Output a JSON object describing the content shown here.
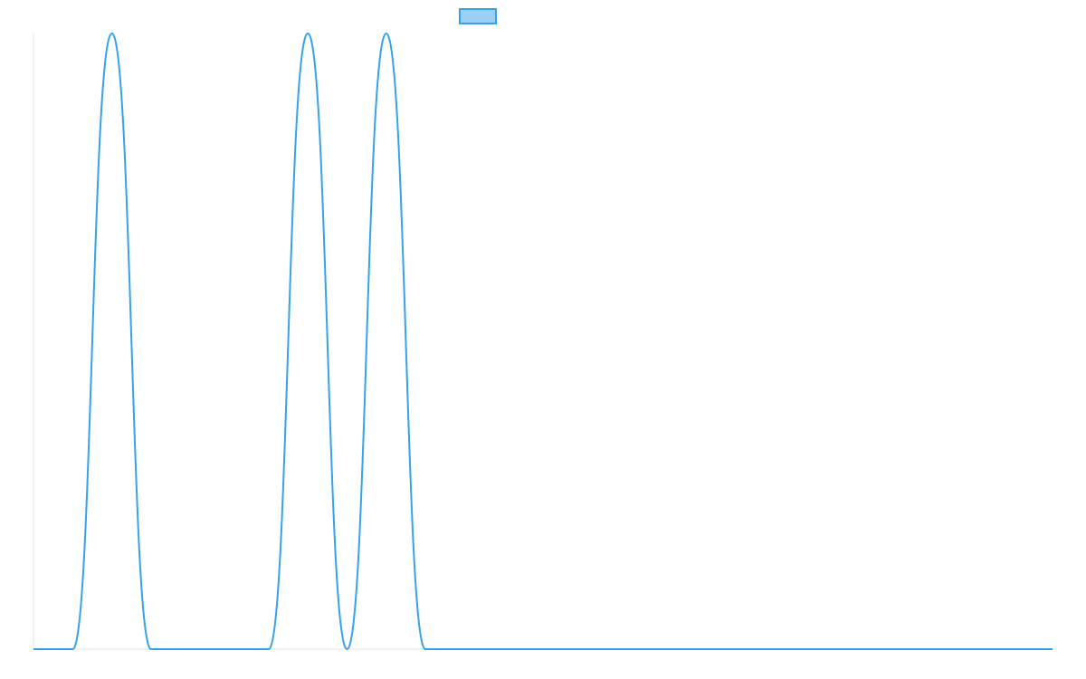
{
  "chart_data": {
    "type": "line",
    "title": "",
    "xlabel": "",
    "ylabel": "",
    "x": [
      0,
      1,
      2,
      3,
      4,
      5,
      6,
      7,
      8,
      9,
      10,
      11,
      12,
      13,
      14,
      15,
      16,
      17,
      18,
      19,
      20,
      21,
      22,
      23,
      24,
      25,
      26
    ],
    "series": [
      {
        "name": "",
        "values": [
          0,
          0,
          1,
          0,
          0,
          0,
          0,
          1,
          0,
          1,
          0,
          0,
          0,
          0,
          0,
          0,
          0,
          0,
          0,
          0,
          0,
          0,
          0,
          0,
          0,
          0,
          0
        ]
      }
    ],
    "xlim": [
      0,
      26
    ],
    "ylim": [
      0,
      1
    ],
    "grid": false,
    "legend": "top-center",
    "colors": {
      "line": "#36a2eb",
      "legend_fill": "#9ad0f5",
      "axis": "#e5e5e5"
    }
  }
}
